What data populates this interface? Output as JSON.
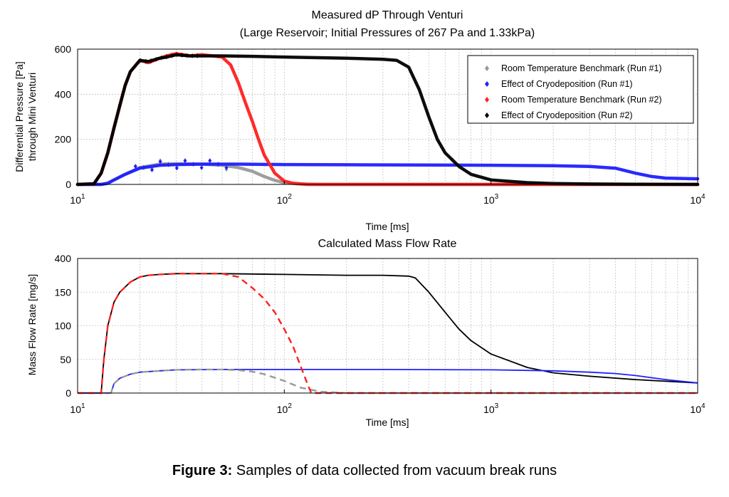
{
  "figure_caption": {
    "label": "Figure 3:",
    "text": "Samples of data collected from vacuum break runs"
  },
  "colors": {
    "room_temp_run1": "#999999",
    "cryo_run1": "#1f1fff",
    "room_temp_run2": "#ff2020",
    "cryo_run2": "#000000",
    "grid": "#b0b0b0"
  },
  "chart_data": [
    {
      "type": "scatter",
      "title": "Measured dP Through Venturi",
      "subtitle": "(Large Reservoir; Initial Pressures of 267 Pa and 1.33kPa)",
      "xlabel": "Time [ms]",
      "ylabel_line1": "Differential Pressure [Pa]",
      "ylabel_line2": "through Mini Venturi",
      "xscale": "log",
      "xlim": [
        10,
        10000
      ],
      "ylim": [
        0,
        600
      ],
      "yticks": [
        0,
        200,
        400,
        600
      ],
      "xticks": [
        {
          "base": "10",
          "exp": "1"
        },
        {
          "base": "10",
          "exp": "2"
        },
        {
          "base": "10",
          "exp": "3"
        },
        {
          "base": "10",
          "exp": "4"
        }
      ],
      "grid": true,
      "legend_position": "top-right",
      "series": [
        {
          "name": "Room Temperature Benchmark (Run #1)",
          "x": [
            10,
            12,
            13,
            14,
            15,
            17,
            20,
            25,
            30,
            40,
            50,
            60,
            70,
            80,
            90,
            100,
            120,
            150,
            300,
            1000,
            10000
          ],
          "y": [
            0,
            0,
            0,
            5,
            20,
            45,
            75,
            90,
            92,
            90,
            85,
            75,
            58,
            35,
            18,
            8,
            2,
            0,
            0,
            0,
            0
          ]
        },
        {
          "name": "Effect of Cryodeposition (Run #1)",
          "x": [
            10,
            12,
            13,
            14,
            15,
            17,
            20,
            25,
            30,
            40,
            60,
            100,
            200,
            500,
            1000,
            2000,
            3000,
            4000,
            5000,
            6000,
            7000,
            10000
          ],
          "y": [
            0,
            0,
            0,
            5,
            20,
            45,
            72,
            85,
            88,
            90,
            90,
            88,
            87,
            86,
            85,
            83,
            80,
            72,
            50,
            35,
            28,
            25
          ]
        },
        {
          "name": "Room Temperature Benchmark (Run #2)",
          "x": [
            10,
            12,
            13,
            14,
            15,
            16,
            17,
            18,
            20,
            22,
            25,
            27,
            30,
            35,
            40,
            45,
            50,
            55,
            60,
            65,
            70,
            75,
            80,
            90,
            100,
            110,
            130,
            200,
            1000,
            10000
          ],
          "y": [
            0,
            3,
            50,
            140,
            250,
            350,
            440,
            500,
            550,
            540,
            560,
            570,
            580,
            570,
            575,
            570,
            565,
            530,
            450,
            360,
            280,
            200,
            130,
            50,
            15,
            5,
            0,
            0,
            0,
            0
          ]
        },
        {
          "name": "Effect of Cryodeposition (Run #2)",
          "x": [
            10,
            12,
            13,
            14,
            15,
            16,
            17,
            18,
            20,
            22,
            25,
            27,
            30,
            35,
            40,
            50,
            70,
            100,
            200,
            300,
            350,
            400,
            450,
            500,
            550,
            600,
            700,
            800,
            1000,
            1500,
            2000,
            3000,
            5000,
            10000
          ],
          "y": [
            0,
            3,
            50,
            140,
            250,
            350,
            440,
            500,
            550,
            545,
            560,
            565,
            575,
            570,
            570,
            570,
            568,
            565,
            560,
            555,
            550,
            520,
            420,
            300,
            200,
            140,
            80,
            45,
            20,
            8,
            4,
            2,
            1,
            0
          ]
        }
      ]
    },
    {
      "type": "line",
      "title": "Calculated Mass Flow Rate",
      "xlabel": "Time [ms]",
      "ylabel": "Mass Flow Rate [mg/s]",
      "xscale": "log",
      "xlim": [
        10,
        10000
      ],
      "yticks": [
        0,
        50,
        100,
        150,
        400
      ],
      "yticks_note": "printed tick labels",
      "xticks": [
        {
          "base": "10",
          "exp": "1"
        },
        {
          "base": "10",
          "exp": "2"
        },
        {
          "base": "10",
          "exp": "3"
        },
        {
          "base": "10",
          "exp": "4"
        }
      ],
      "grid": true,
      "series": [
        {
          "name": "Room Temperature Benchmark (Run #1)",
          "style": "dashed",
          "x": [
            10,
            14.5,
            15,
            16,
            18,
            20,
            25,
            30,
            40,
            50,
            60,
            70,
            80,
            100,
            120,
            150,
            200,
            10000
          ],
          "y": [
            0,
            0,
            14,
            22,
            28,
            31,
            33,
            34.5,
            35,
            35,
            34,
            32,
            28,
            18,
            8,
            2,
            0,
            0
          ]
        },
        {
          "name": "Effect of Cryodeposition (Run #1)",
          "style": "solid",
          "x": [
            10,
            14.5,
            15,
            16,
            18,
            20,
            25,
            30,
            50,
            100,
            300,
            1000,
            2000,
            3000,
            4000,
            5000,
            7000,
            10000
          ],
          "y": [
            0,
            0,
            14,
            22,
            28,
            31,
            33,
            34.5,
            35,
            35,
            35,
            34.5,
            33,
            31,
            29,
            26,
            20,
            15
          ]
        },
        {
          "name": "Room Temperature Benchmark (Run #2)",
          "style": "dashed",
          "x": [
            10,
            13,
            13.4,
            14,
            15,
            16,
            18,
            20,
            22,
            25,
            30,
            40,
            50,
            60,
            70,
            80,
            90,
            100,
            110,
            120,
            130,
            135,
            10000
          ],
          "y": [
            0,
            0,
            50,
            100,
            135,
            150,
            162,
            168,
            170,
            171,
            172,
            172,
            172,
            168,
            155,
            140,
            120,
            95,
            70,
            40,
            12,
            0,
            0
          ]
        },
        {
          "name": "Effect of Cryodeposition (Run #2)",
          "style": "solid",
          "x": [
            10,
            13,
            13.4,
            14,
            15,
            16,
            18,
            20,
            22,
            25,
            30,
            50,
            100,
            200,
            300,
            400,
            430,
            500,
            600,
            700,
            800,
            1000,
            1500,
            2000,
            3000,
            5000,
            10000
          ],
          "y": [
            0,
            0,
            50,
            100,
            135,
            150,
            162,
            168,
            170,
            171,
            172,
            172,
            171,
            170,
            170,
            169,
            167,
            150,
            120,
            95,
            78,
            58,
            38,
            30,
            25,
            20,
            15
          ]
        }
      ]
    }
  ]
}
